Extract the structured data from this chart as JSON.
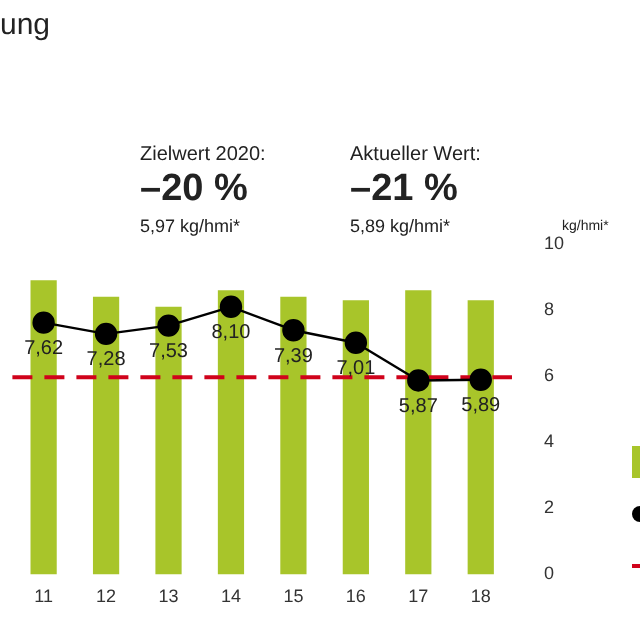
{
  "chart_data": {
    "type": "bar",
    "title": "ung",
    "ylabel": "kg/hmi*",
    "categories": [
      "11",
      "12",
      "13",
      "14",
      "15",
      "16",
      "17",
      "18"
    ],
    "series": [
      {
        "color": "#a8c52a",
        "values": [
          8.9,
          8.4,
          8.1,
          8.6,
          8.4,
          8.3,
          8.6,
          8.3
        ]
      },
      {
        "type": "line",
        "color": "#000000",
        "values": [
          7.62,
          7.28,
          7.53,
          8.1,
          7.39,
          7.01,
          5.87,
          5.89
        ],
        "value_labels": [
          "7,62",
          "7,28",
          "7,53",
          "8,10",
          "7,39",
          "7,01",
          "5,87",
          "5,89"
        ]
      }
    ],
    "ref_lines": [
      {
        "axis": "y",
        "value": 5.97,
        "color": "#d0021b",
        "line_style": "dashed"
      }
    ],
    "annotations": [
      "Zielwert 2020:",
      "–20 %",
      "5,97 kg/hmi*",
      "Aktueller Wert:",
      "–21 %",
      "5,89 kg/hmi*"
    ],
    "ylim": [
      0,
      10
    ],
    "yticks": [
      0,
      2,
      4,
      6,
      8,
      10
    ],
    "grid": false,
    "marker": "circle"
  }
}
